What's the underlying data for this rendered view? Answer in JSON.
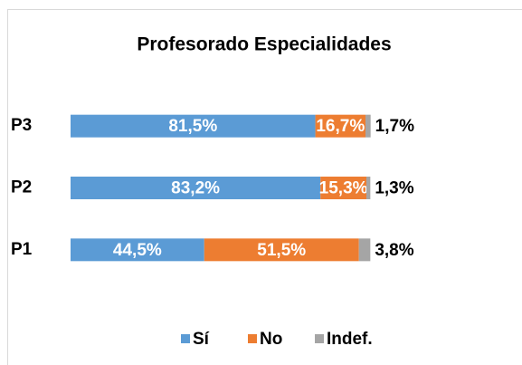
{
  "chart_data": {
    "type": "stacked-bar-horizontal",
    "title": "Profesorado Especialidades",
    "categories": [
      "P1",
      "P2",
      "P3"
    ],
    "series": [
      {
        "name": "Sí",
        "color": "#5b9bd5",
        "values": [
          44.5,
          83.2,
          81.5
        ],
        "value_labels": [
          "44,5%",
          "83,2%",
          "81,5%"
        ]
      },
      {
        "name": "No",
        "color": "#ed7d31",
        "values": [
          51.5,
          15.3,
          16.7
        ],
        "value_labels": [
          "51,5%",
          "15,3%",
          "16,7%"
        ]
      },
      {
        "name": "Indef.",
        "color": "#a5a5a5",
        "values": [
          3.8,
          1.3,
          1.7
        ],
        "value_labels": [
          "3,8%",
          "1,3%",
          "1,7%"
        ]
      }
    ],
    "xlim": [
      0,
      100
    ],
    "legend": "bottom"
  }
}
